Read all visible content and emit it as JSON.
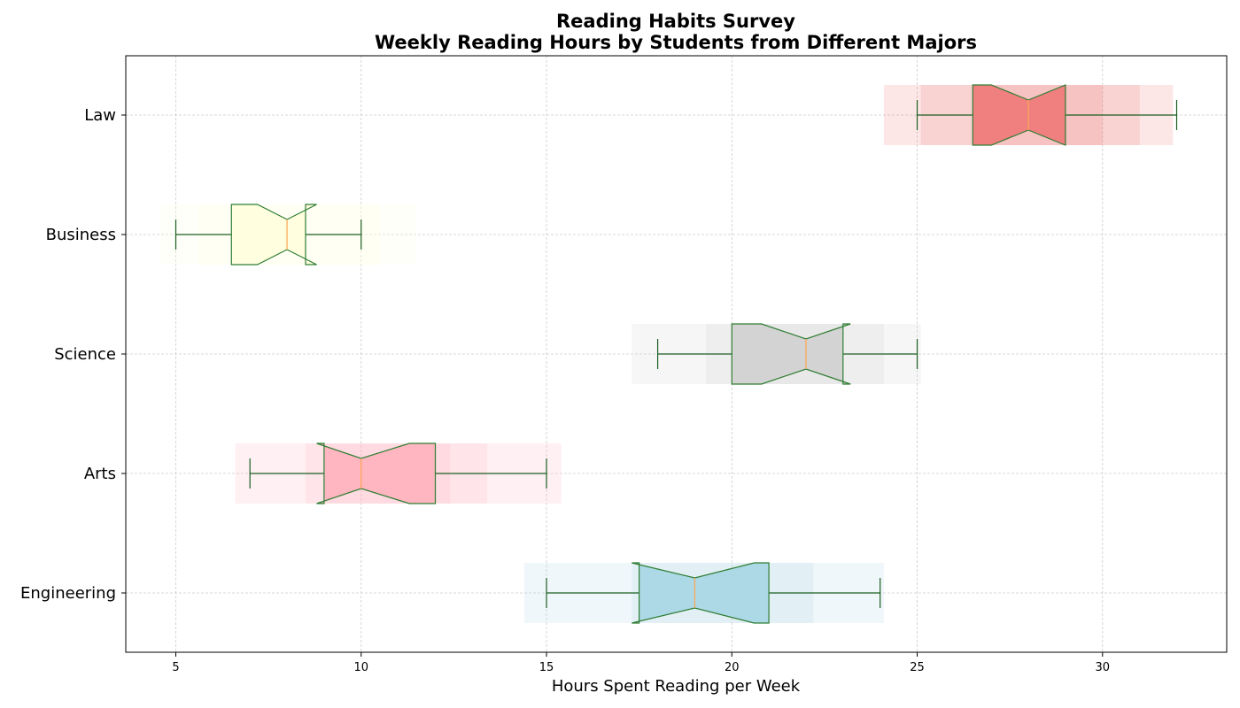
{
  "chart_data": {
    "type": "boxplot",
    "orientation": "horizontal",
    "title": "Reading Habits Survey",
    "subtitle": "Weekly Reading Hours by Students from Different Majors",
    "xlabel": "Hours Spent Reading per Week",
    "ylabel": "",
    "xlim": [
      3.65,
      33.35
    ],
    "xticks": [
      "5",
      "10",
      "15",
      "20",
      "25",
      "30"
    ],
    "grid": true,
    "notched": true,
    "categories": [
      "Engineering",
      "Arts",
      "Science",
      "Business",
      "Law"
    ],
    "series": [
      {
        "category": "Engineering",
        "color": "#add8e6",
        "whisker_low": 15,
        "q1": 17.5,
        "median": 19,
        "q3": 21,
        "whisker_high": 24,
        "notch_low": 17.3,
        "notch_high": 20.6,
        "glow_bands": [
          [
            14.4,
            24.1
          ],
          [
            17.3,
            22.2
          ]
        ]
      },
      {
        "category": "Arts",
        "color": "#ffb6c1",
        "whisker_low": 7,
        "q1": 9,
        "median": 10,
        "q3": 12,
        "whisker_high": 15,
        "notch_low": 8.8,
        "notch_high": 11.3,
        "glow_bands": [
          [
            6.6,
            15.4
          ],
          [
            8.5,
            13.4
          ],
          [
            9.0,
            12.4
          ]
        ]
      },
      {
        "category": "Science",
        "color": "#d3d3d3",
        "whisker_low": 18,
        "q1": 20,
        "median": 22,
        "q3": 23,
        "whisker_high": 25,
        "notch_low": 20.8,
        "notch_high": 23.2,
        "glow_bands": [
          [
            17.3,
            25.1
          ],
          [
            19.3,
            24.1
          ],
          [
            20.0,
            23.0
          ]
        ]
      },
      {
        "category": "Business",
        "color": "#ffffe0",
        "whisker_low": 5,
        "q1": 6.5,
        "median": 8,
        "q3": 8.5,
        "whisker_high": 10,
        "notch_low": 7.2,
        "notch_high": 8.8,
        "glow_bands": [
          [
            4.6,
            11.5
          ],
          [
            5.6,
            10.5
          ]
        ]
      },
      {
        "category": "Law",
        "color": "#f08080",
        "whisker_low": 25,
        "q1": 26.5,
        "median": 28,
        "q3": 29,
        "whisker_high": 32,
        "notch_low": 27.0,
        "notch_high": 29.0,
        "glow_bands": [
          [
            24.1,
            31.9
          ],
          [
            25.1,
            31.0
          ],
          [
            26.5,
            30.0
          ]
        ]
      }
    ],
    "colors": {
      "box_edge": "#2e7d32",
      "whisker": "#1b5e20",
      "median": "#ffa54f",
      "grid": "#cccccc"
    }
  }
}
